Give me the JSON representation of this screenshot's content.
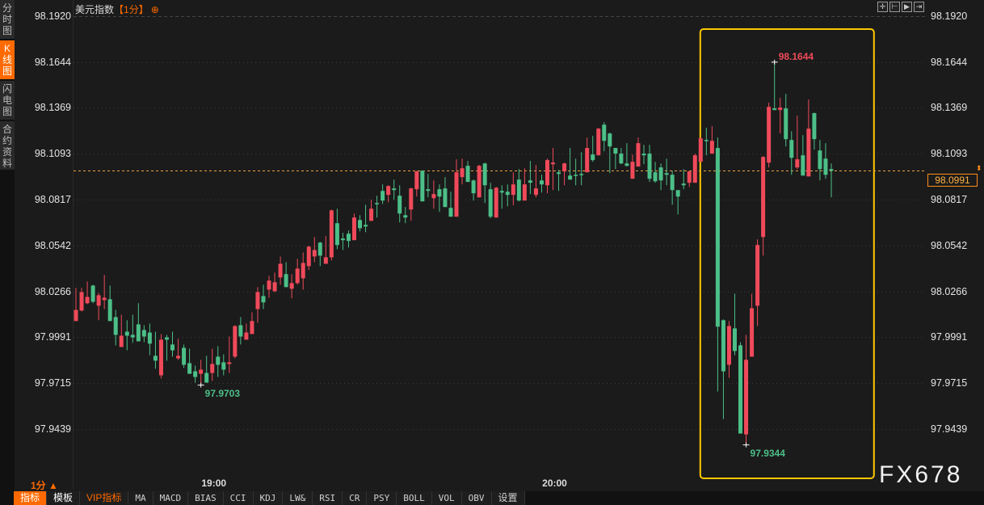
{
  "sidebar": {
    "tabs": [
      {
        "label": "分时图",
        "active": false
      },
      {
        "label": "K线图",
        "active": true
      },
      {
        "label": "闪电图",
        "active": false
      },
      {
        "label": "合约资料",
        "active": false
      }
    ]
  },
  "header": {
    "symbol": "美元指数",
    "timeframe": "【1分】",
    "add_icon": "circle-plus-icon"
  },
  "top_tools": [
    "crosshair-icon",
    "zoom-in-range-icon",
    "play-range-icon",
    "scroll-to-end-icon"
  ],
  "period_selector": {
    "label": "1分",
    "icon": "triangle-up-icon"
  },
  "watermark": "FX678",
  "toolbar": [
    "指标",
    "模板",
    "VIP指标",
    "MA",
    "MACD",
    "BIAS",
    "CCI",
    "KDJ",
    "LW&",
    "RSI",
    "CR",
    "PSY",
    "BOLL",
    "VOL",
    "OBV",
    "设置"
  ],
  "colors": {
    "up": "#f04a5a",
    "down": "#4cbf88",
    "accent": "#ff6a00",
    "highlight_box": "#ffc800",
    "last_price_line": "#f0a040",
    "background": "#1b1b1b"
  },
  "chart_data": {
    "type": "candlestick",
    "interval": "1分",
    "yticks": [
      98.192,
      98.1644,
      98.1369,
      98.1093,
      98.0817,
      98.0542,
      98.0266,
      97.9991,
      97.9715,
      97.9439
    ],
    "ylim": [
      97.9439,
      98.192
    ],
    "grid": true,
    "xticks": [
      {
        "label": "19:00",
        "index": 24
      },
      {
        "label": "20:00",
        "index": 84
      }
    ],
    "last_price": "98.0991",
    "annotations": [
      {
        "label": "98.1644",
        "type": "high",
        "index": 123,
        "value": 98.1644
      },
      {
        "label": "97.9703",
        "type": "low",
        "index": 22,
        "value": 97.9703
      },
      {
        "label": "97.9344",
        "type": "low",
        "index": 118,
        "value": 97.9344
      }
    ],
    "highlight_range": {
      "from_index": 110,
      "to_index": 133
    },
    "ohlc": [
      [
        98.0088,
        98.0287,
        98.0088,
        98.0155
      ],
      [
        98.0151,
        98.0287,
        98.0146,
        98.0262
      ],
      [
        98.0195,
        98.0326,
        98.019,
        98.0233
      ],
      [
        98.0301,
        98.0306,
        98.0195,
        98.0204
      ],
      [
        98.018,
        98.0257,
        98.0093,
        98.0243
      ],
      [
        98.0214,
        98.0365,
        98.016,
        98.0228
      ],
      [
        98.0219,
        98.0301,
        98.0088,
        98.0088
      ],
      [
        98.0112,
        98.0155,
        97.9942,
        98.0005
      ],
      [
        97.9932,
        98.0126,
        97.9932,
        98.0
      ],
      [
        98.0024,
        98.0093,
        97.9912,
        98.0
      ],
      [
        98.0005,
        98.0126,
        97.9957,
        97.999
      ],
      [
        98.0068,
        98.0195,
        97.9966,
        97.9966
      ],
      [
        98.0034,
        98.0063,
        97.9961,
        97.9995
      ],
      [
        98.0019,
        98.0073,
        97.9883,
        97.9952
      ],
      [
        97.9879,
        98.0024,
        97.9801,
        97.985
      ],
      [
        97.9762,
        98.001,
        97.9743,
        97.9976
      ],
      [
        97.999,
        98.0005,
        97.985,
        97.9976
      ],
      [
        97.9947,
        98.0024,
        97.9874,
        97.9912
      ],
      [
        97.9864,
        97.9981,
        97.9855,
        97.9879
      ],
      [
        97.9927,
        97.9947,
        97.9806,
        97.9825
      ],
      [
        97.9835,
        97.9922,
        97.9771,
        97.9771
      ],
      [
        97.9786,
        97.982,
        97.9718,
        97.9752
      ],
      [
        97.9771,
        97.9855,
        97.9703,
        97.9796
      ],
      [
        97.9776,
        97.9879,
        97.9718,
        97.9718
      ],
      [
        97.9776,
        97.9922,
        97.9728,
        97.983
      ],
      [
        97.9874,
        97.9937,
        97.9752,
        97.9825
      ],
      [
        97.984,
        97.9888,
        97.9762,
        97.9796
      ],
      [
        97.983,
        97.9995,
        97.9776,
        97.984
      ],
      [
        97.9874,
        98.0063,
        97.9864,
        98.0058
      ],
      [
        98.0063,
        98.0112,
        97.9947,
        97.9995
      ],
      [
        97.9976,
        98.0073,
        97.9976,
        98.0019
      ],
      [
        98.001,
        98.0141,
        98.001,
        98.0088
      ],
      [
        98.016,
        98.0292,
        98.0078,
        98.0262
      ],
      [
        98.0238,
        98.0306,
        98.016,
        98.02
      ],
      [
        98.0277,
        98.036,
        98.0228,
        98.0331
      ],
      [
        98.0267,
        98.0379,
        98.0262,
        98.0321
      ],
      [
        98.035,
        98.0476,
        98.0306,
        98.0432
      ],
      [
        98.037,
        98.0442,
        98.0292,
        98.0292
      ],
      [
        98.0282,
        98.037,
        98.0224,
        98.0316
      ],
      [
        98.0316,
        98.0462,
        98.0306,
        98.0403
      ],
      [
        98.0345,
        98.05,
        98.0277,
        98.0437
      ],
      [
        98.0418,
        98.054,
        98.0394,
        98.0535
      ],
      [
        98.0476,
        98.0593,
        98.0442,
        98.0515
      ],
      [
        98.0559,
        98.0564,
        98.0418,
        98.0481
      ],
      [
        98.0432,
        98.0598,
        98.0432,
        98.0471
      ],
      [
        98.0471,
        98.0758,
        98.0452,
        98.0753
      ],
      [
        98.0676,
        98.0763,
        98.052,
        98.0545
      ],
      [
        98.0584,
        98.0618,
        98.0515,
        98.0574
      ],
      [
        98.0613,
        98.0632,
        98.053,
        98.0569
      ],
      [
        98.0574,
        98.0734,
        98.0574,
        98.071
      ],
      [
        98.0695,
        98.0724,
        98.0627,
        98.0646
      ],
      [
        98.0666,
        98.0787,
        98.0622,
        98.0656
      ],
      [
        98.069,
        98.0817,
        98.069,
        98.0763
      ],
      [
        98.0797,
        98.0841,
        98.071,
        98.0792
      ],
      [
        98.087,
        98.0909,
        98.0792,
        98.0812
      ],
      [
        98.0846,
        98.0904,
        98.0802,
        98.0899
      ],
      [
        98.0885,
        98.0938,
        98.0817,
        98.0875
      ],
      [
        98.0841,
        98.0904,
        98.0681,
        98.0734
      ],
      [
        98.0724,
        98.0773,
        98.0676,
        98.071
      ],
      [
        98.0758,
        98.0889,
        98.069,
        98.0885
      ],
      [
        98.088,
        98.0992,
        98.0836,
        98.0987
      ],
      [
        98.0992,
        98.0992,
        98.0807,
        98.0807
      ],
      [
        98.088,
        98.0972,
        98.0831,
        98.087
      ],
      [
        98.0826,
        98.0933,
        98.0763,
        98.0851
      ],
      [
        98.088,
        98.0909,
        98.0744,
        98.0836
      ],
      [
        98.0885,
        98.0953,
        98.0773,
        98.0773
      ],
      [
        98.0768,
        98.0865,
        98.0715,
        98.0715
      ],
      [
        98.0715,
        98.106,
        98.0715,
        98.0982
      ],
      [
        98.0953,
        98.1064,
        98.0909,
        98.1006
      ],
      [
        98.1021,
        98.105,
        98.0924,
        98.0924
      ],
      [
        98.0933,
        98.0938,
        98.0812,
        98.0856
      ],
      [
        98.0831,
        98.1026,
        98.0831,
        98.1021
      ],
      [
        98.1035,
        98.104,
        98.0797,
        98.0904
      ],
      [
        98.088,
        98.0919,
        98.0705,
        98.0715
      ],
      [
        98.071,
        98.0894,
        98.071,
        98.0889
      ],
      [
        98.087,
        98.0904,
        98.0763,
        98.086
      ],
      [
        98.0865,
        98.0909,
        98.0778,
        98.0846
      ],
      [
        98.0846,
        98.0982,
        98.0783,
        98.0909
      ],
      [
        98.0938,
        98.1001,
        98.0807,
        98.0812
      ],
      [
        98.0812,
        98.1006,
        98.0812,
        98.0909
      ],
      [
        98.0933,
        98.105,
        98.0851,
        98.0919
      ],
      [
        98.0846,
        98.1026,
        98.0831,
        98.0885
      ],
      [
        98.0933,
        98.0967,
        98.086,
        98.0909
      ],
      [
        98.0904,
        98.1064,
        98.0856,
        98.1055
      ],
      [
        98.103,
        98.1128,
        98.0875,
        98.104
      ],
      [
        98.0982,
        98.0996,
        98.087,
        98.0972
      ],
      [
        98.0987,
        98.104,
        98.0904,
        98.1035
      ],
      [
        98.0962,
        98.1128,
        98.0938,
        98.0938
      ],
      [
        98.0967,
        98.1064,
        98.0904,
        98.0962
      ],
      [
        98.0972,
        98.1103,
        98.0904,
        98.0967
      ],
      [
        98.0982,
        98.1191,
        98.0982,
        98.1128
      ],
      [
        98.1089,
        98.12,
        98.1045,
        98.1055
      ],
      [
        98.1084,
        98.1249,
        98.1084,
        98.1244
      ],
      [
        98.1268,
        98.1283,
        98.1108,
        98.1171
      ],
      [
        98.1215,
        98.122,
        98.0977,
        98.1137
      ],
      [
        98.1128,
        98.1128,
        98.1001,
        98.1094
      ],
      [
        98.1094,
        98.1128,
        98.103,
        98.1035
      ],
      [
        98.1035,
        98.1157,
        98.1016,
        98.1021
      ],
      [
        98.0943,
        98.1089,
        98.0943,
        98.1045
      ],
      [
        98.1016,
        98.1191,
        98.1016,
        98.1157
      ],
      [
        98.1094,
        98.1147,
        98.103,
        98.1084
      ],
      [
        98.1094,
        98.1147,
        98.0924,
        98.0943
      ],
      [
        98.0982,
        98.1045,
        98.0919,
        98.0928
      ],
      [
        98.1011,
        98.1035,
        98.0875,
        98.0933
      ],
      [
        98.0977,
        98.1064,
        98.0904,
        98.0967
      ],
      [
        98.0967,
        98.0992,
        98.0787,
        98.0875
      ],
      [
        98.0875,
        98.0875,
        98.0729,
        98.0836
      ],
      [
        98.0914,
        98.1001,
        98.088,
        98.0904
      ],
      [
        98.0919,
        98.0992,
        98.0894,
        98.0987
      ],
      [
        98.0919,
        98.1094,
        98.0919,
        98.1084
      ],
      [
        98.1045,
        98.1191,
        98.1045,
        98.1186
      ],
      [
        98.1176,
        98.1249,
        98.1084,
        98.1171
      ],
      [
        98.1094,
        98.1259,
        98.1094,
        98.1171
      ],
      [
        98.1128,
        98.1191,
        97.9665,
        98.0054
      ],
      [
        98.0093,
        98.0098,
        97.9499,
        97.9786
      ],
      [
        97.9825,
        98.0088,
        97.9747,
        98.0058
      ],
      [
        98.0044,
        98.0252,
        97.9883,
        97.9908
      ],
      [
        97.9942,
        97.9961,
        97.9412,
        97.9412
      ],
      [
        97.9407,
        98.0005,
        97.9344,
        97.9855
      ],
      [
        97.9874,
        98.0252,
        97.9874,
        98.0165
      ],
      [
        98.018,
        98.0579,
        98.0058,
        98.0545
      ],
      [
        98.0593,
        98.1079,
        98.0481,
        98.1074
      ],
      [
        98.104,
        98.14,
        98.1011,
        98.1375
      ],
      [
        98.1366,
        98.1644,
        98.1356,
        98.1356
      ],
      [
        98.1356,
        98.1429,
        98.1215,
        98.1371
      ],
      [
        98.1366,
        98.1453,
        98.1137,
        98.1181
      ],
      [
        98.1176,
        98.1229,
        98.0967,
        98.1069
      ],
      [
        98.1011,
        98.1322,
        98.1001,
        98.106
      ],
      [
        98.1084,
        98.1205,
        98.0962,
        98.0962
      ],
      [
        98.0957,
        98.1419,
        98.0957,
        98.1244
      ],
      [
        98.1337,
        98.1341,
        98.1118,
        98.1181
      ],
      [
        98.1113,
        98.1176,
        98.0933,
        98.1001
      ],
      [
        98.1064,
        98.1157,
        98.0943,
        98.0967
      ],
      [
        98.1001,
        98.1035,
        98.0831,
        98.0991
      ]
    ]
  }
}
